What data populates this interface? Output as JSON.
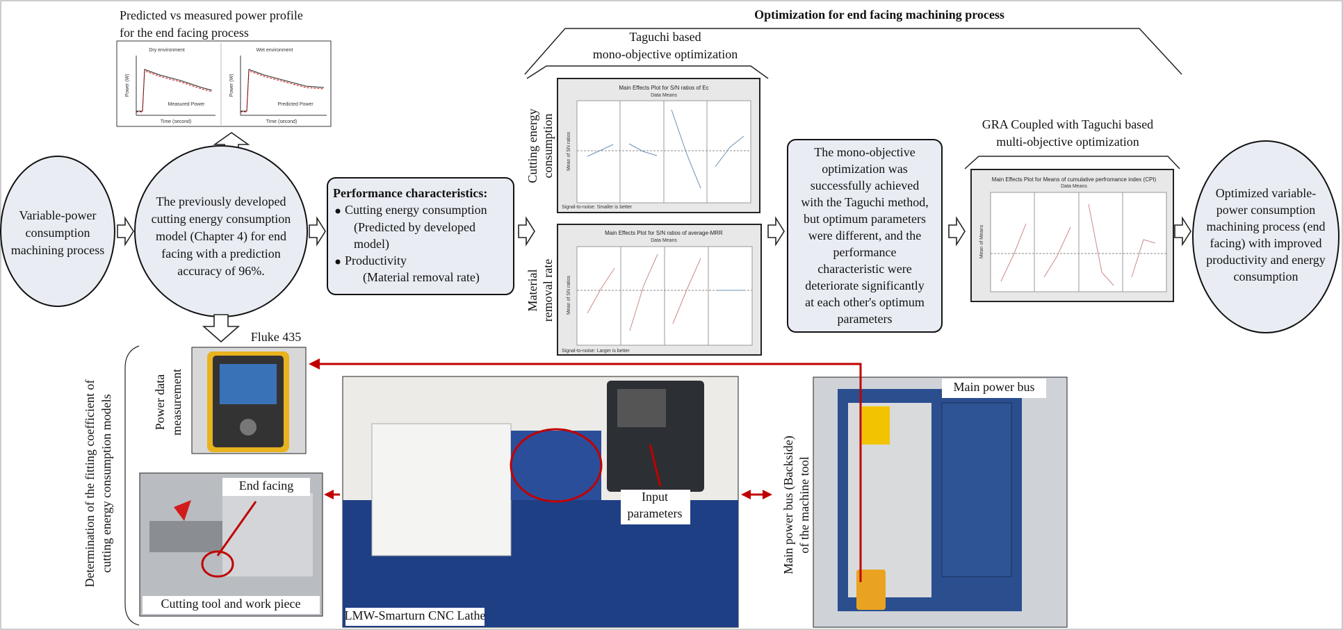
{
  "header": {
    "title": "Optimization for end facing machining process"
  },
  "power_profile": {
    "caption": [
      "Predicted vs measured power profile",
      "for the end facing process"
    ],
    "panels": [
      "Dry environment",
      "Wet environment"
    ],
    "x_label": "Time (second)",
    "y_label": "Power (W)",
    "legend": [
      "Measured Power",
      "Predicted Power"
    ]
  },
  "nodes": {
    "input": [
      "Variable-power",
      "consumption",
      "machining process"
    ],
    "model": [
      "The previously developed",
      "cutting energy consumption",
      "model (Chapter 4) for end",
      "facing with a prediction",
      "accuracy of 96%."
    ],
    "performance": {
      "title": "Performance characteristics:",
      "lines": [
        "Cutting energy consumption",
        "(Predicted by developed",
        "model)",
        "Productivity",
        "(Material removal rate)"
      ]
    },
    "finding": [
      "The mono-objective",
      "optimization was",
      "successfully achieved",
      "with the Taguchi method,",
      "but optimum parameters",
      "were different, and the",
      "performance",
      "characteristic were",
      "deteriorate significantly",
      "at each other's optimum",
      "parameters"
    ],
    "output": [
      "Optimized variable-",
      "power consumption",
      "machining process (end",
      "facing) with improved",
      "productivity and energy",
      "consumption"
    ]
  },
  "taguchi": {
    "caption": [
      "Taguchi based",
      "mono-objective optimization"
    ],
    "row_labels": [
      [
        "Cutting energy",
        "consumption"
      ],
      [
        "Material",
        "removal rate"
      ]
    ],
    "plots": [
      {
        "title": "Main Effects Plot for S/N ratios of Ec",
        "subtitle": "Data Means",
        "note": "Signal-to-noise: Smaller is better",
        "y_label": "Mean of SN ratios"
      },
      {
        "title": "Main Effects Plot for S/N ratios of average-MRR",
        "subtitle": "Data Means",
        "note": "Signal-to-noise: Larger is better",
        "y_label": "Mean of SN ratios"
      }
    ]
  },
  "gra": {
    "caption": [
      "GRA Coupled with Taguchi based",
      "multi-objective optimization"
    ],
    "plot": {
      "title": "Main Effects Plot for Means of cumulative perfromance index (CPI)",
      "subtitle": "Data Means",
      "y_label": "Mean of Means"
    }
  },
  "experiment": {
    "side_label": [
      "Determination of the fitting coefficient of",
      "cutting energy consumption models"
    ],
    "fluke": {
      "title": "Fluke 435",
      "label": [
        "Power data",
        "measurement"
      ]
    },
    "tool": {
      "label": "End facing",
      "caption": "Cutting tool and work piece"
    },
    "lathe": {
      "caption": "LMW-Smarturn CNC Lathe",
      "label": [
        "Input",
        "parameters"
      ]
    },
    "bus": {
      "label": "Main power bus",
      "side_label": [
        "Main power bus (Backside)",
        "of the machine tool"
      ]
    }
  }
}
